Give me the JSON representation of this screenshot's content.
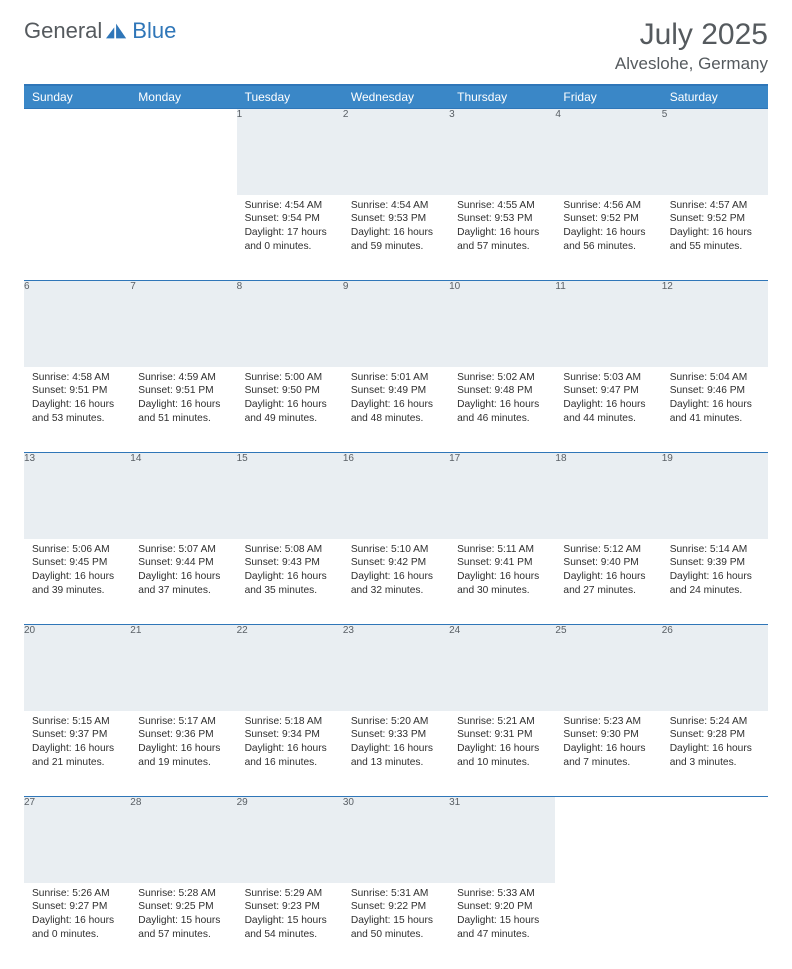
{
  "brand": {
    "part1": "General",
    "part2": "Blue"
  },
  "title": "July 2025",
  "location": "Alveslohe, Germany",
  "colors": {
    "header_bg": "#3a87c7",
    "header_border": "#2f76b8",
    "daynum_bg": "#e9eef2",
    "text": "#333333",
    "muted": "#555a5e"
  },
  "weekdays": [
    "Sunday",
    "Monday",
    "Tuesday",
    "Wednesday",
    "Thursday",
    "Friday",
    "Saturday"
  ],
  "weeks": [
    [
      null,
      null,
      {
        "n": "1",
        "sr": "Sunrise: 4:54 AM",
        "ss": "Sunset: 9:54 PM",
        "dl1": "Daylight: 17 hours",
        "dl2": "and 0 minutes."
      },
      {
        "n": "2",
        "sr": "Sunrise: 4:54 AM",
        "ss": "Sunset: 9:53 PM",
        "dl1": "Daylight: 16 hours",
        "dl2": "and 59 minutes."
      },
      {
        "n": "3",
        "sr": "Sunrise: 4:55 AM",
        "ss": "Sunset: 9:53 PM",
        "dl1": "Daylight: 16 hours",
        "dl2": "and 57 minutes."
      },
      {
        "n": "4",
        "sr": "Sunrise: 4:56 AM",
        "ss": "Sunset: 9:52 PM",
        "dl1": "Daylight: 16 hours",
        "dl2": "and 56 minutes."
      },
      {
        "n": "5",
        "sr": "Sunrise: 4:57 AM",
        "ss": "Sunset: 9:52 PM",
        "dl1": "Daylight: 16 hours",
        "dl2": "and 55 minutes."
      }
    ],
    [
      {
        "n": "6",
        "sr": "Sunrise: 4:58 AM",
        "ss": "Sunset: 9:51 PM",
        "dl1": "Daylight: 16 hours",
        "dl2": "and 53 minutes."
      },
      {
        "n": "7",
        "sr": "Sunrise: 4:59 AM",
        "ss": "Sunset: 9:51 PM",
        "dl1": "Daylight: 16 hours",
        "dl2": "and 51 minutes."
      },
      {
        "n": "8",
        "sr": "Sunrise: 5:00 AM",
        "ss": "Sunset: 9:50 PM",
        "dl1": "Daylight: 16 hours",
        "dl2": "and 49 minutes."
      },
      {
        "n": "9",
        "sr": "Sunrise: 5:01 AM",
        "ss": "Sunset: 9:49 PM",
        "dl1": "Daylight: 16 hours",
        "dl2": "and 48 minutes."
      },
      {
        "n": "10",
        "sr": "Sunrise: 5:02 AM",
        "ss": "Sunset: 9:48 PM",
        "dl1": "Daylight: 16 hours",
        "dl2": "and 46 minutes."
      },
      {
        "n": "11",
        "sr": "Sunrise: 5:03 AM",
        "ss": "Sunset: 9:47 PM",
        "dl1": "Daylight: 16 hours",
        "dl2": "and 44 minutes."
      },
      {
        "n": "12",
        "sr": "Sunrise: 5:04 AM",
        "ss": "Sunset: 9:46 PM",
        "dl1": "Daylight: 16 hours",
        "dl2": "and 41 minutes."
      }
    ],
    [
      {
        "n": "13",
        "sr": "Sunrise: 5:06 AM",
        "ss": "Sunset: 9:45 PM",
        "dl1": "Daylight: 16 hours",
        "dl2": "and 39 minutes."
      },
      {
        "n": "14",
        "sr": "Sunrise: 5:07 AM",
        "ss": "Sunset: 9:44 PM",
        "dl1": "Daylight: 16 hours",
        "dl2": "and 37 minutes."
      },
      {
        "n": "15",
        "sr": "Sunrise: 5:08 AM",
        "ss": "Sunset: 9:43 PM",
        "dl1": "Daylight: 16 hours",
        "dl2": "and 35 minutes."
      },
      {
        "n": "16",
        "sr": "Sunrise: 5:10 AM",
        "ss": "Sunset: 9:42 PM",
        "dl1": "Daylight: 16 hours",
        "dl2": "and 32 minutes."
      },
      {
        "n": "17",
        "sr": "Sunrise: 5:11 AM",
        "ss": "Sunset: 9:41 PM",
        "dl1": "Daylight: 16 hours",
        "dl2": "and 30 minutes."
      },
      {
        "n": "18",
        "sr": "Sunrise: 5:12 AM",
        "ss": "Sunset: 9:40 PM",
        "dl1": "Daylight: 16 hours",
        "dl2": "and 27 minutes."
      },
      {
        "n": "19",
        "sr": "Sunrise: 5:14 AM",
        "ss": "Sunset: 9:39 PM",
        "dl1": "Daylight: 16 hours",
        "dl2": "and 24 minutes."
      }
    ],
    [
      {
        "n": "20",
        "sr": "Sunrise: 5:15 AM",
        "ss": "Sunset: 9:37 PM",
        "dl1": "Daylight: 16 hours",
        "dl2": "and 21 minutes."
      },
      {
        "n": "21",
        "sr": "Sunrise: 5:17 AM",
        "ss": "Sunset: 9:36 PM",
        "dl1": "Daylight: 16 hours",
        "dl2": "and 19 minutes."
      },
      {
        "n": "22",
        "sr": "Sunrise: 5:18 AM",
        "ss": "Sunset: 9:34 PM",
        "dl1": "Daylight: 16 hours",
        "dl2": "and 16 minutes."
      },
      {
        "n": "23",
        "sr": "Sunrise: 5:20 AM",
        "ss": "Sunset: 9:33 PM",
        "dl1": "Daylight: 16 hours",
        "dl2": "and 13 minutes."
      },
      {
        "n": "24",
        "sr": "Sunrise: 5:21 AM",
        "ss": "Sunset: 9:31 PM",
        "dl1": "Daylight: 16 hours",
        "dl2": "and 10 minutes."
      },
      {
        "n": "25",
        "sr": "Sunrise: 5:23 AM",
        "ss": "Sunset: 9:30 PM",
        "dl1": "Daylight: 16 hours",
        "dl2": "and 7 minutes."
      },
      {
        "n": "26",
        "sr": "Sunrise: 5:24 AM",
        "ss": "Sunset: 9:28 PM",
        "dl1": "Daylight: 16 hours",
        "dl2": "and 3 minutes."
      }
    ],
    [
      {
        "n": "27",
        "sr": "Sunrise: 5:26 AM",
        "ss": "Sunset: 9:27 PM",
        "dl1": "Daylight: 16 hours",
        "dl2": "and 0 minutes."
      },
      {
        "n": "28",
        "sr": "Sunrise: 5:28 AM",
        "ss": "Sunset: 9:25 PM",
        "dl1": "Daylight: 15 hours",
        "dl2": "and 57 minutes."
      },
      {
        "n": "29",
        "sr": "Sunrise: 5:29 AM",
        "ss": "Sunset: 9:23 PM",
        "dl1": "Daylight: 15 hours",
        "dl2": "and 54 minutes."
      },
      {
        "n": "30",
        "sr": "Sunrise: 5:31 AM",
        "ss": "Sunset: 9:22 PM",
        "dl1": "Daylight: 15 hours",
        "dl2": "and 50 minutes."
      },
      {
        "n": "31",
        "sr": "Sunrise: 5:33 AM",
        "ss": "Sunset: 9:20 PM",
        "dl1": "Daylight: 15 hours",
        "dl2": "and 47 minutes."
      },
      null,
      null
    ]
  ]
}
